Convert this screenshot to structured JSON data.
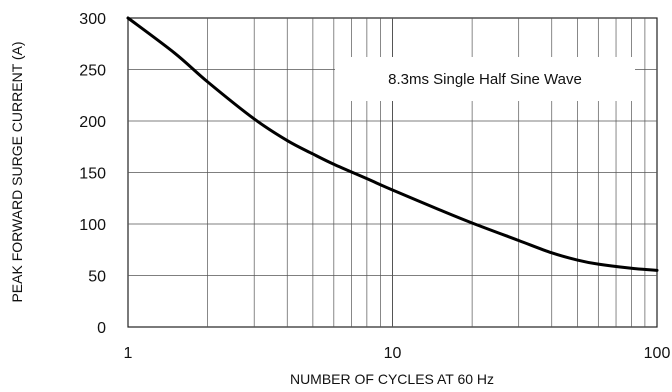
{
  "chart_data": {
    "type": "line",
    "title": "",
    "xlabel": "NUMBER OF CYCLES AT 60 Hz",
    "ylabel": "PEAK FORWARD SURGE CURRENT (A)",
    "x_scale": "log",
    "xlim": [
      1,
      100
    ],
    "ylim": [
      0,
      300
    ],
    "x_ticks": [
      1,
      10,
      100
    ],
    "x_tick_labels": [
      "1",
      "10",
      "100"
    ],
    "y_ticks": [
      0,
      50,
      100,
      150,
      200,
      250,
      300
    ],
    "y_tick_labels": [
      "0",
      "50",
      "100",
      "150",
      "200",
      "250",
      "300"
    ],
    "grid": true,
    "annotation": "8.3ms Single Half Sine Wave",
    "series": [
      {
        "x": [
          1,
          1.5,
          2,
          3,
          4,
          5,
          6,
          8,
          10,
          15,
          20,
          30,
          40,
          50,
          60,
          80,
          100
        ],
        "y": [
          300,
          266,
          238,
          202,
          181,
          168,
          158,
          144,
          133,
          114,
          101,
          84,
          72,
          65,
          61,
          57,
          55
        ]
      }
    ]
  }
}
